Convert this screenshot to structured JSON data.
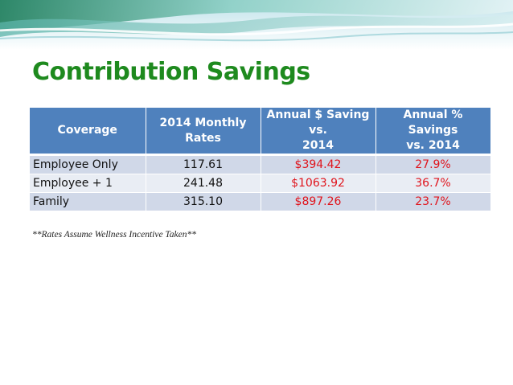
{
  "title": "Contribution Savings",
  "table": {
    "headers": {
      "coverage": "Coverage",
      "rates_l1": "2014 Monthly",
      "rates_l2": "Rates",
      "dollar_l1": "Annual $ Saving vs.",
      "dollar_l2": "2014",
      "pct_l1": "Annual % Savings",
      "pct_l2": "vs. 2014"
    },
    "rows": [
      {
        "coverage": "Employee Only",
        "rate": "117.61",
        "dollar_saving": "$394.42",
        "pct_saving": "27.9%"
      },
      {
        "coverage": "Employee + 1",
        "rate": "241.48",
        "dollar_saving": "$1063.92",
        "pct_saving": "36.7%"
      },
      {
        "coverage": "Family",
        "rate": "315.10",
        "dollar_saving": "$897.26",
        "pct_saving": "23.7%"
      }
    ]
  },
  "footnote": "**Rates Assume Wellness Incentive Taken**",
  "colors": {
    "title": "#1e8a1e",
    "header_bg": "#4f81bd",
    "row_odd": "#d0d8e8",
    "row_even": "#e9edf4",
    "savings_text": "#e0141c"
  }
}
